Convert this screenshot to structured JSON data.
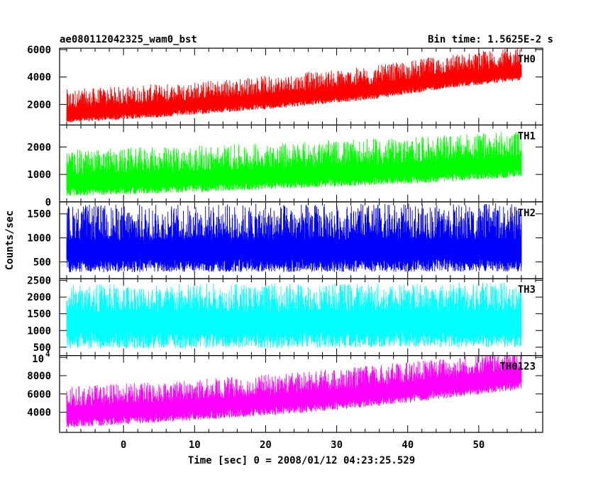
{
  "header": {
    "title": "ae080112042325_wam0_bst",
    "bin_time": "Bin time: 1.5625E-2 s"
  },
  "colors": {
    "frame": "#000000",
    "TH0": "#ff0000",
    "TH1": "#00ff00",
    "TH2": "#0000ff",
    "TH3": "#00ffff",
    "TH0123": "#ff00ff"
  },
  "chart_data": {
    "type": "line",
    "xlabel": "Time [sec] 0 = 2008/01/12 04:23:25.529",
    "ylabel": "Counts/sec",
    "xlim": [
      -9,
      59
    ],
    "x_ticks": [
      0,
      10,
      20,
      30,
      40,
      50
    ],
    "x_range": [
      -8,
      56
    ],
    "bin_time_s": 0.015625,
    "panels": [
      {
        "name": "TH0",
        "ylim": [
          500,
          6100
        ],
        "y_ticks": [
          2000,
          4000,
          6000
        ],
        "y_tick_labels": [
          "2000",
          "4000",
          "6000"
        ],
        "trend": [
          [
            -8,
            1300
          ],
          [
            5,
            1700
          ],
          [
            20,
            2300
          ],
          [
            35,
            3000
          ],
          [
            45,
            3800
          ],
          [
            56,
            4400
          ]
        ],
        "noise": [
          -650,
          1800
        ]
      },
      {
        "name": "TH1",
        "ylim": [
          0,
          2800
        ],
        "y_ticks": [
          0,
          1000,
          2000
        ],
        "y_tick_labels": [
          "0",
          "1000",
          "2000"
        ],
        "trend": [
          [
            -8,
            650
          ],
          [
            10,
            800
          ],
          [
            25,
            950
          ],
          [
            40,
            1100
          ],
          [
            56,
            1350
          ]
        ],
        "noise": [
          -450,
          1250
        ]
      },
      {
        "name": "TH2",
        "ylim": [
          150,
          1750
        ],
        "y_ticks": [
          500,
          1000,
          1500
        ],
        "y_tick_labels": [
          "500",
          "1000",
          "1500"
        ],
        "trend": [
          [
            -8,
            700
          ],
          [
            56,
            720
          ]
        ],
        "noise": [
          -420,
          1000
        ]
      },
      {
        "name": "TH3",
        "ylim": [
          250,
          2550
        ],
        "y_ticks": [
          500,
          1000,
          1500,
          2000,
          2500
        ],
        "y_tick_labels": [
          "500",
          "1000",
          "1500",
          "2000",
          "2500"
        ],
        "trend": [
          [
            -8,
            1250
          ],
          [
            56,
            1300
          ]
        ],
        "noise": [
          -800,
          1150
        ]
      },
      {
        "name": "TH0123",
        "ylim": [
          1800,
          10200
        ],
        "y_ticks": [
          4000,
          6000,
          8000,
          10000
        ],
        "y_tick_labels": [
          "4000",
          "6000",
          "8000",
          ""
        ],
        "y_top_label": "10",
        "y_top_label_exp": "4",
        "trend": [
          [
            -8,
            3800
          ],
          [
            10,
            4600
          ],
          [
            25,
            5400
          ],
          [
            40,
            6500
          ],
          [
            56,
            8000
          ]
        ],
        "noise": [
          -1500,
          3000
        ]
      }
    ]
  }
}
